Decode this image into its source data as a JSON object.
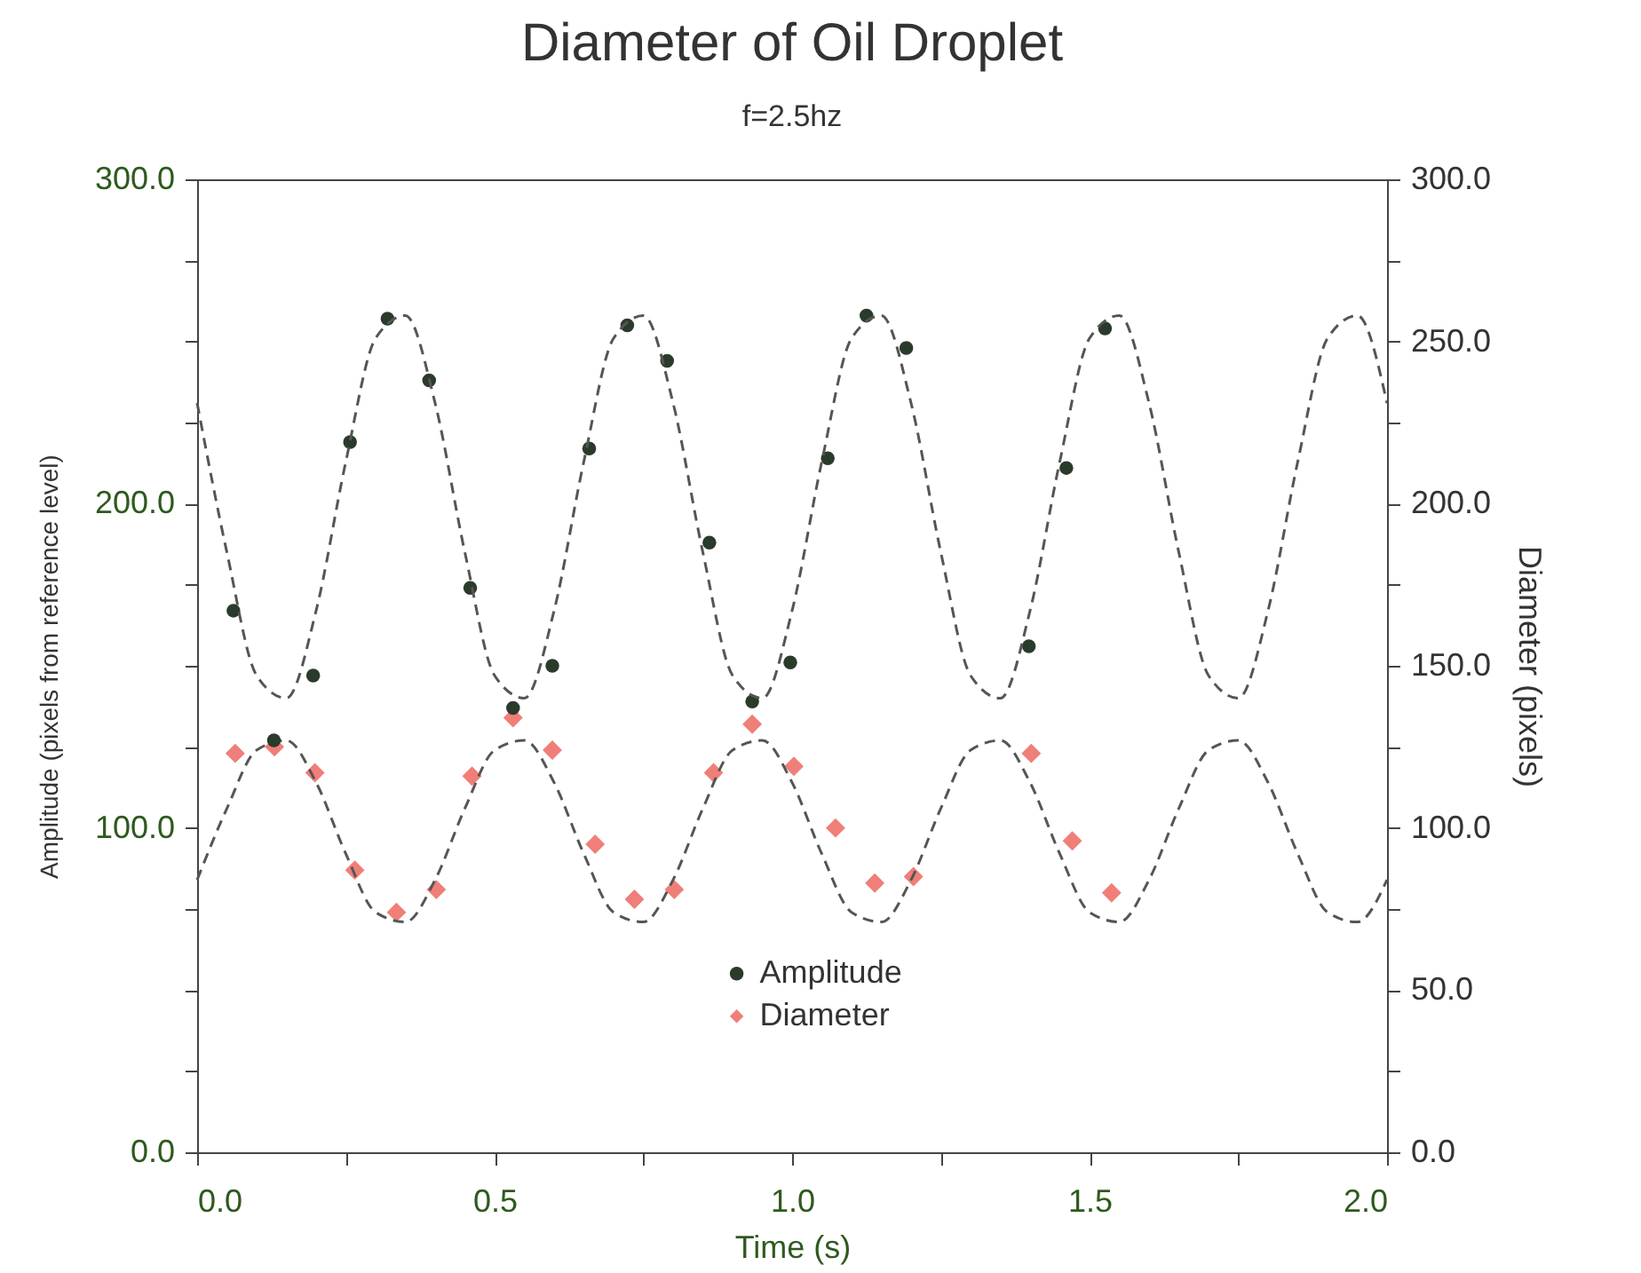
{
  "chart_data": {
    "type": "scatter",
    "title": "Diameter of Oil Droplet",
    "subtitle": "f=2.5hz",
    "xlabel": "Time (s)",
    "ylabel": "Amplitude (pixels from reference level)",
    "y2label": "Diameter (pixels)",
    "xlim": [
      0,
      2
    ],
    "xticks": [
      {
        "value": 0,
        "label": "0.0"
      },
      {
        "value": 0.25,
        "label": null
      },
      {
        "value": 0.5,
        "label": "0.5"
      },
      {
        "value": 0.75,
        "label": null
      },
      {
        "value": 1,
        "label": "1.0"
      },
      {
        "value": 1.25,
        "label": null
      },
      {
        "value": 1.5,
        "label": "1.5"
      },
      {
        "value": 1.75,
        "label": null
      },
      {
        "value": 2,
        "label": "2.0"
      }
    ],
    "ylim": [
      0,
      300
    ],
    "yticks": [
      {
        "value": 0,
        "label": "0.0"
      },
      {
        "value": 25,
        "label": null
      },
      {
        "value": 50,
        "label": null
      },
      {
        "value": 75,
        "label": null
      },
      {
        "value": 100,
        "label": "100.0"
      },
      {
        "value": 125,
        "label": null
      },
      {
        "value": 150,
        "label": null
      },
      {
        "value": 175,
        "label": null
      },
      {
        "value": 200,
        "label": "200.0"
      },
      {
        "value": 225,
        "label": null
      },
      {
        "value": 250,
        "label": null
      },
      {
        "value": 275,
        "label": null
      },
      {
        "value": 300,
        "label": "300.0"
      }
    ],
    "y2lim": [
      0,
      300
    ],
    "y2ticks": [
      {
        "value": 0,
        "label": "0.0"
      },
      {
        "value": 25,
        "label": null
      },
      {
        "value": 50,
        "label": "50.0"
      },
      {
        "value": 75,
        "label": null
      },
      {
        "value": 100,
        "label": "100.0"
      },
      {
        "value": 125,
        "label": null
      },
      {
        "value": 150,
        "label": "150.0"
      },
      {
        "value": 175,
        "label": null
      },
      {
        "value": 200,
        "label": "200.0"
      },
      {
        "value": 225,
        "label": null
      },
      {
        "value": 250,
        "label": "250.0"
      },
      {
        "value": 275,
        "label": null
      },
      {
        "value": 300,
        "label": "300.0"
      }
    ],
    "legend": "bottom",
    "series": [
      {
        "name": "Amplitude",
        "marker": "circle",
        "color": "#2b3b2b",
        "x": [
          0.061,
          0.129,
          0.195,
          0.257,
          0.32,
          0.39,
          0.459,
          0.531,
          0.597,
          0.659,
          0.723,
          0.79,
          0.861,
          0.933,
          0.997,
          1.06,
          1.125,
          1.192,
          1.398,
          1.461,
          1.526
        ],
        "values": [
          167,
          127,
          147,
          219,
          257,
          238,
          174,
          137,
          150,
          217,
          255,
          244,
          188,
          139,
          151,
          214,
          258,
          248,
          156,
          211,
          254
        ]
      },
      {
        "type": "line",
        "line_style": "dashed",
        "marker": "none",
        "color": "#555555",
        "x": [
          0,
          0.05,
          0.1,
          0.15,
          0.2,
          0.25,
          0.3,
          0.35,
          0.4,
          0.45,
          0.5,
          0.55,
          0.6,
          0.65,
          0.7,
          0.75,
          0.8,
          0.85,
          0.9,
          0.95,
          1,
          1.05,
          1.1,
          1.15,
          1.2,
          1.25,
          1.3,
          1.35,
          1.4,
          1.45,
          1.5,
          1.55,
          1.6,
          1.65,
          1.7,
          1.75,
          1.8,
          1.85,
          1.9,
          1.95,
          2
        ],
        "values": [
          231,
          185,
          147,
          140,
          167,
          213,
          251,
          258,
          231,
          185,
          147,
          140,
          167,
          213,
          251,
          258,
          231,
          185,
          147,
          140,
          167,
          213,
          251,
          258,
          231,
          185,
          147,
          140,
          167,
          213,
          251,
          258,
          231,
          185,
          147,
          140,
          167,
          213,
          251,
          258,
          231
        ]
      },
      {
        "name": "Diameter",
        "axis": "y2",
        "marker": "diamond",
        "color": "#ef7f78",
        "x": [
          0.064,
          0.13,
          0.198,
          0.265,
          0.335,
          0.402,
          0.462,
          0.531,
          0.597,
          0.669,
          0.735,
          0.802,
          0.868,
          0.933,
          1.003,
          1.073,
          1.139,
          1.204,
          1.402,
          1.471,
          1.537
        ],
        "values": [
          123,
          125,
          117,
          87,
          74,
          81,
          116,
          134,
          124,
          95,
          78,
          81,
          117,
          132,
          119,
          100,
          83,
          85,
          123,
          96,
          80
        ]
      },
      {
        "type": "line",
        "axis": "y2",
        "line_style": "dashed",
        "marker": "none",
        "color": "#555555",
        "x": [
          0,
          0.05,
          0.1,
          0.15,
          0.2,
          0.25,
          0.3,
          0.35,
          0.4,
          0.45,
          0.5,
          0.55,
          0.6,
          0.65,
          0.7,
          0.75,
          0.8,
          0.85,
          0.9,
          0.95,
          1,
          1.05,
          1.1,
          1.15,
          1.2,
          1.25,
          1.3,
          1.35,
          1.4,
          1.45,
          1.5,
          1.55,
          1.6,
          1.65,
          1.7,
          1.75,
          1.8,
          1.85,
          1.9,
          1.95,
          2
        ],
        "values": [
          84,
          106,
          124,
          127,
          114,
          92,
          74,
          71,
          84,
          106,
          124,
          127,
          114,
          92,
          74,
          71,
          84,
          106,
          124,
          127,
          114,
          92,
          74,
          71,
          84,
          106,
          124,
          127,
          114,
          92,
          74,
          71,
          84,
          106,
          124,
          127,
          114,
          92,
          74,
          71,
          84
        ]
      }
    ]
  }
}
